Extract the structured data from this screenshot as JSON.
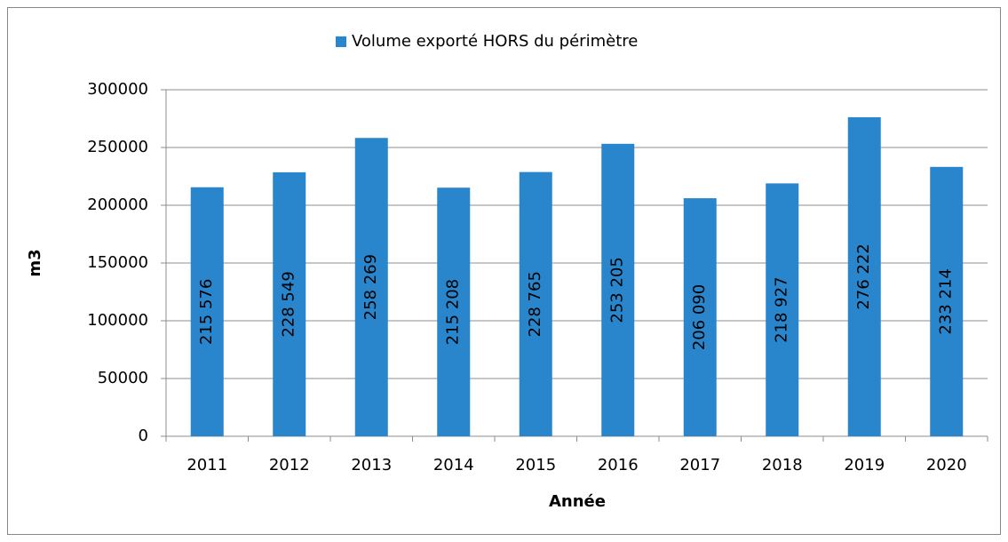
{
  "chart_data": {
    "type": "bar",
    "categories": [
      "2011",
      "2012",
      "2013",
      "2014",
      "2015",
      "2016",
      "2017",
      "2018",
      "2019",
      "2020"
    ],
    "series": [
      {
        "name": "Volume exporté HORS du périmètre",
        "color": "#2a86cc",
        "values": [
          215576,
          228549,
          258269,
          215208,
          228765,
          253205,
          206090,
          218927,
          276222,
          233214
        ],
        "value_labels": [
          "215 576",
          "228 549",
          "258 269",
          "215 208",
          "228 765",
          "253 205",
          "206 090",
          "218 927",
          "276 222",
          "233 214"
        ]
      }
    ],
    "ylim": [
      0,
      300000
    ],
    "yticks": [
      0,
      50000,
      100000,
      150000,
      200000,
      250000,
      300000
    ],
    "y_label": "m3",
    "x_label": "Année",
    "grid": true,
    "legend": "top"
  }
}
